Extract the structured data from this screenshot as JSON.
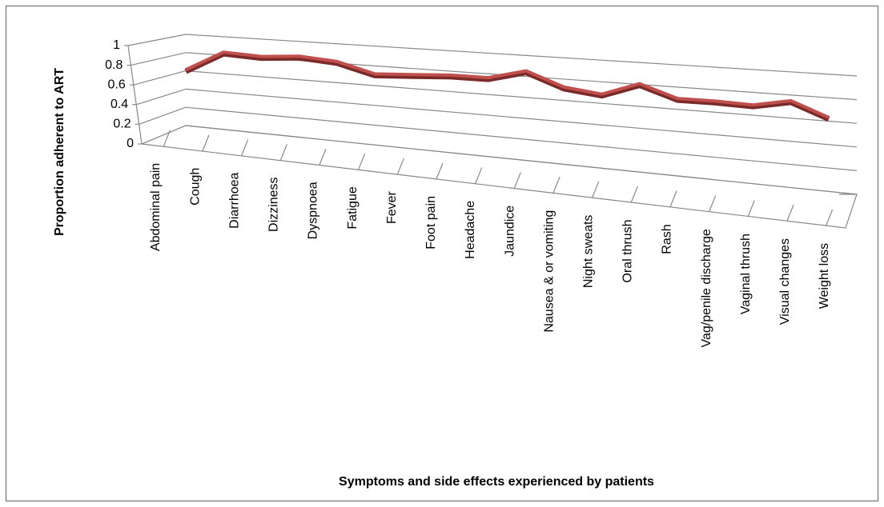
{
  "chart_data": {
    "type": "line",
    "x_label": "Symptoms and side effects experienced by patients",
    "y_label": "Proportion adherent to ART",
    "categories": [
      "Abdominal pain",
      "Cough",
      "Diarrhoea",
      "Dizziness",
      "Dyspnoea",
      "Fatigue",
      "Fever",
      "Foot pain",
      "Headache",
      "Jaundice",
      "Nausea & or vomiting",
      "Night sweats",
      "Oral thrush",
      "Rash",
      "Vag/penile discharge",
      "Vaginal thrush",
      "Visual changes",
      "Weight loss"
    ],
    "values": [
      0.7,
      0.92,
      0.9,
      0.93,
      0.9,
      0.8,
      0.82,
      0.84,
      0.84,
      0.93,
      0.8,
      0.76,
      0.88,
      0.77,
      0.77,
      0.76,
      0.82,
      0.7
    ],
    "color": "#c0504d",
    "ylim": [
      0,
      1
    ],
    "yticks": [
      0,
      0.2,
      0.4,
      0.6,
      0.8,
      1
    ],
    "grid": true
  }
}
